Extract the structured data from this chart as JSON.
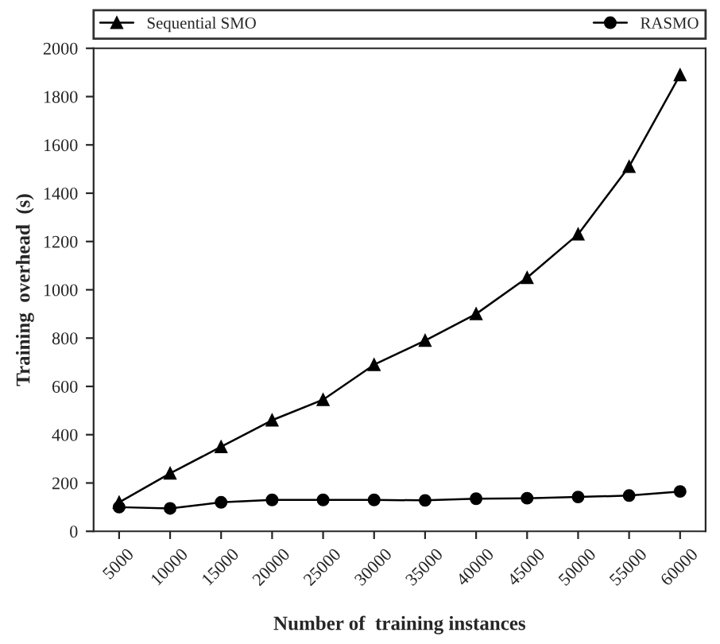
{
  "chart_data": {
    "type": "line",
    "xlabel": "Number of  training instances",
    "ylabel": "Training  overhead  (s)",
    "categories": [
      "5000",
      "10000",
      "15000",
      "20000",
      "25000",
      "30000",
      "35000",
      "40000",
      "45000",
      "50000",
      "55000",
      "60000"
    ],
    "series": [
      {
        "name": "Sequential SMO",
        "color": "#000000",
        "marker": "triangle",
        "values": [
          120,
          240,
          350,
          460,
          545,
          690,
          790,
          900,
          1050,
          1230,
          1510,
          1890
        ]
      },
      {
        "name": "RASMO",
        "color": "#000000",
        "marker": "circle",
        "values": [
          100,
          95,
          120,
          130,
          130,
          130,
          128,
          135,
          137,
          142,
          148,
          165
        ]
      }
    ],
    "ylim": [
      0,
      2000
    ],
    "yticks": [
      0,
      200,
      400,
      600,
      800,
      1000,
      1200,
      1400,
      1600,
      1800,
      2000
    ],
    "grid": false,
    "legend": "top",
    "line_style": "solid"
  }
}
